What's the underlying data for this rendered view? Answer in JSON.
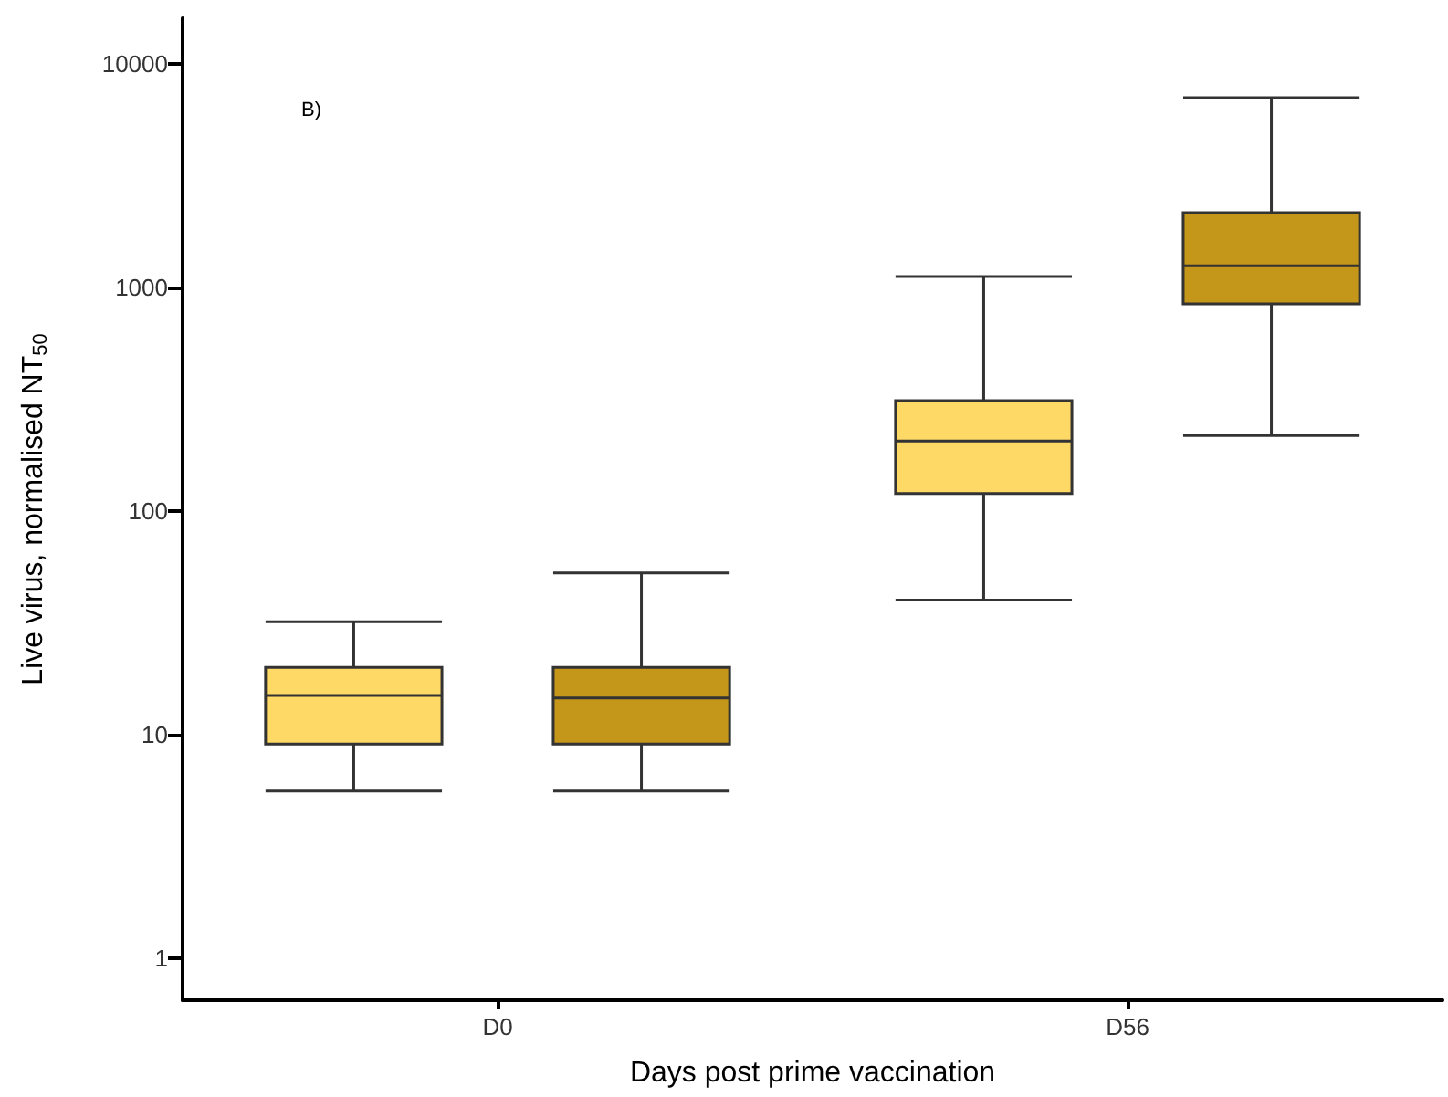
{
  "chart_data": {
    "type": "box",
    "xlabel": "Days post prime vaccination",
    "ylabel": "Live virus, normalised NT$_{50}$",
    "annotations": [
      "B)"
    ],
    "categories": [
      "D0",
      "D56"
    ],
    "log": true,
    "ylim": [
      0.65,
      16000
    ],
    "yticks": [
      1,
      10,
      100,
      1000,
      10000
    ],
    "grid": false,
    "series": [
      {
        "color": "#ffd966",
        "boxes": [
          {
            "low": 5.6,
            "q1": 9.1,
            "median": 15,
            "q3": 20,
            "high": 32
          },
          {
            "low": 40,
            "q1": 120,
            "median": 206,
            "q3": 312,
            "high": 1120
          }
        ]
      },
      {
        "color": "#c4961a",
        "boxes": [
          {
            "low": 5.6,
            "q1": 9.1,
            "median": 14.6,
            "q3": 20,
            "high": 53
          },
          {
            "low": 218,
            "q1": 845,
            "median": 1250,
            "q3": 2160,
            "high": 7060
          }
        ]
      }
    ]
  }
}
